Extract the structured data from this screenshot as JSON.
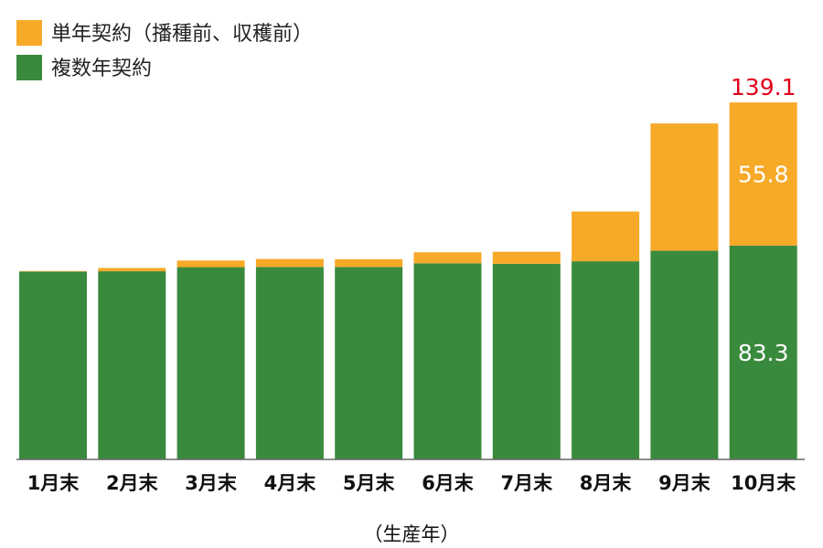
{
  "chart_data": {
    "type": "bar",
    "stacked": true,
    "categories": [
      "1月末",
      "2月末",
      "3月末",
      "4月末",
      "5月末",
      "6月末",
      "7月末",
      "8月末",
      "9月末",
      "10月末"
    ],
    "series": [
      {
        "name": "複数年契約",
        "color": "#3a8a3e",
        "values": [
          73.2,
          73.3,
          74.9,
          75.0,
          75.0,
          76.4,
          76.2,
          77.2,
          81.3,
          83.3
        ]
      },
      {
        "name": "単年契約（播種前、収穫前）",
        "color": "#f7a928",
        "values": [
          0.2,
          1.3,
          2.6,
          3.1,
          3.0,
          4.3,
          4.7,
          19.4,
          49.6,
          55.8
        ]
      }
    ],
    "legend_order": [
      1,
      0
    ],
    "legend_position": "top-left",
    "xlabel": "（生産年）",
    "ylim": [
      0,
      142
    ],
    "grid": false,
    "data_labels": {
      "category": "10月末",
      "segments": [
        "83.3",
        "55.8"
      ],
      "total": "139.1",
      "total_color": "#e0001a"
    }
  }
}
